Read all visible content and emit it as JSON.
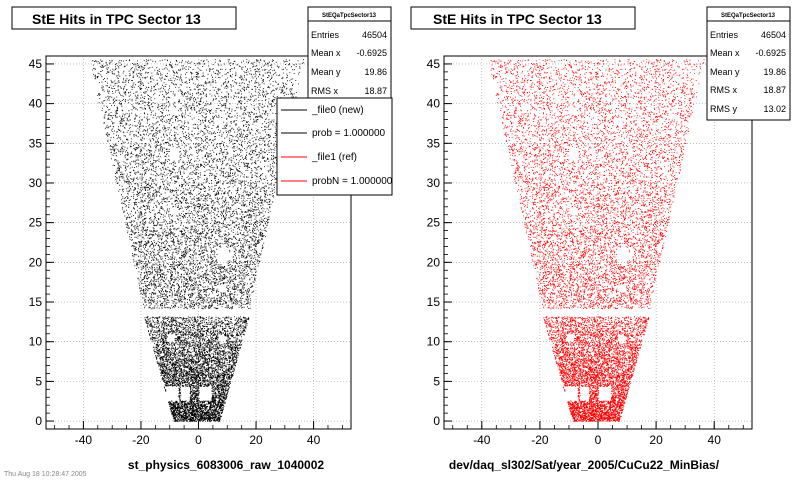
{
  "chart_data": [
    {
      "type": "scatter",
      "title": "StE Hits in TPC Sector 13",
      "xlabel": "st_physics_6083006_raw_1040002",
      "ylabel": "",
      "xlim": [
        -53,
        53
      ],
      "ylim": [
        -1,
        46
      ],
      "x_ticks": [
        "-40",
        "-20",
        "0",
        "20",
        "40"
      ],
      "y_ticks": [
        "0",
        "5",
        "10",
        "15",
        "20",
        "25",
        "30",
        "35",
        "40",
        "45"
      ],
      "x_tick_values": [
        -40,
        -20,
        0,
        20,
        40
      ],
      "y_tick_values": [
        0,
        5,
        10,
        15,
        20,
        25,
        30,
        35,
        40,
        45
      ],
      "marker_color": "#000000",
      "stats": {
        "name": "StEQaTpcSector13",
        "rows": [
          {
            "label": "Entries",
            "value": "46504"
          },
          {
            "label": "Mean x",
            "value": "-0.6925"
          },
          {
            "label": "Mean y",
            "value": "19.86"
          },
          {
            "label": "RMS x",
            "value": "18.87"
          }
        ]
      },
      "legend": {
        "placement": "top-right",
        "entries": [
          {
            "label": "_file0 (new)",
            "color": "#000000"
          },
          {
            "label": "prob = 1.000000",
            "color": "#000000"
          },
          {
            "label": "_file1 (ref)",
            "color": "#ff0000"
          },
          {
            "label": "probN = 1.000000",
            "color": "#ff0000"
          }
        ]
      }
    },
    {
      "type": "scatter",
      "title": "StE Hits in TPC Sector 13",
      "xlabel": "dev/daq_sl302/Sat/year_2005/CuCu22_MinBias/",
      "ylabel": "",
      "xlim": [
        -53,
        53
      ],
      "ylim": [
        -1,
        46
      ],
      "x_ticks": [
        "-40",
        "-20",
        "0",
        "20",
        "40"
      ],
      "y_ticks": [
        "0",
        "5",
        "10",
        "15",
        "20",
        "25",
        "30",
        "35",
        "40",
        "45"
      ],
      "x_tick_values": [
        -40,
        -20,
        0,
        20,
        40
      ],
      "y_tick_values": [
        0,
        5,
        10,
        15,
        20,
        25,
        30,
        35,
        40,
        45
      ],
      "marker_color": "#ff0000",
      "stats": {
        "name": "StEQaTpcSector13",
        "rows": [
          {
            "label": "Entries",
            "value": "46504"
          },
          {
            "label": "Mean x",
            "value": "-0.6925"
          },
          {
            "label": "Mean y",
            "value": "19.86"
          },
          {
            "label": "RMS x",
            "value": "18.87"
          },
          {
            "label": "RMS y",
            "value": "13.02"
          }
        ]
      }
    }
  ],
  "footer": {
    "timestamp": "Thu Aug 18 10:28:47 2005"
  }
}
